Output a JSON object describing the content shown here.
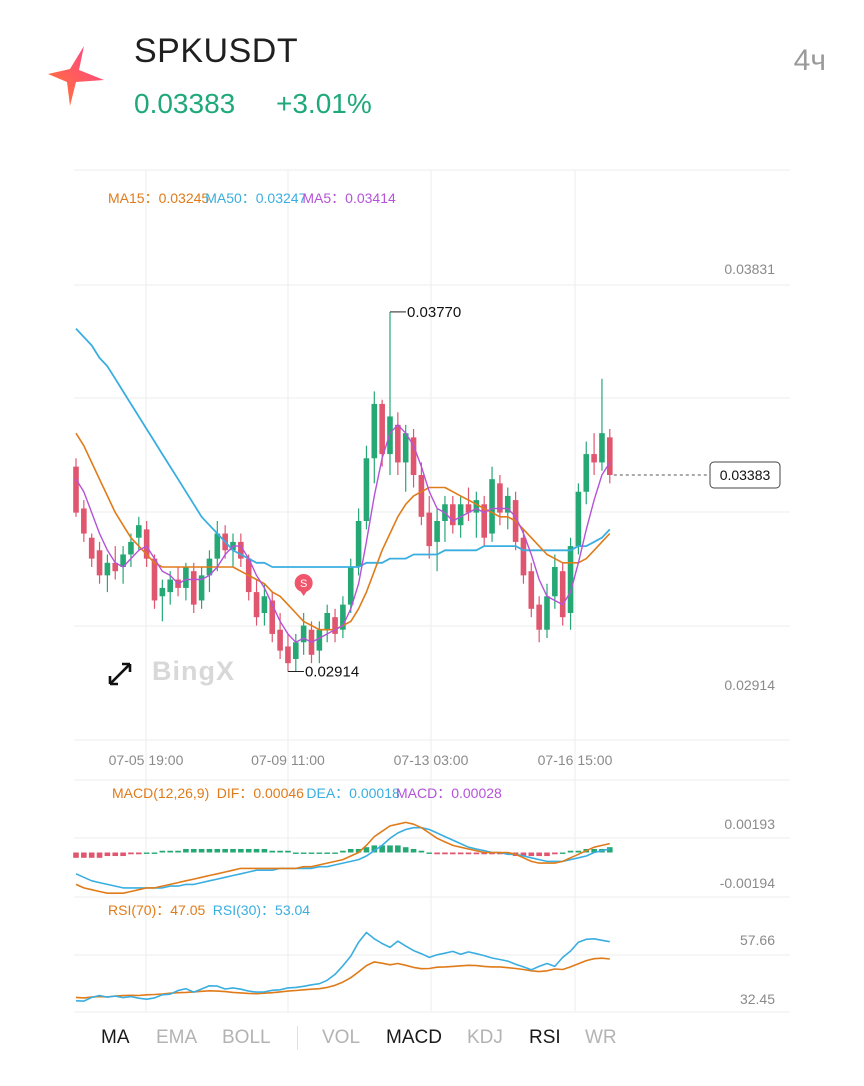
{
  "header": {
    "symbol": "SPKUSDT",
    "price": "0.03383",
    "change": "+3.01%",
    "timeframe": "4ч",
    "logo_icon": "spark-star-icon"
  },
  "colors": {
    "up": "#26a875",
    "down": "#e0566e",
    "ma15": "#e07b1a",
    "ma50": "#3aaee0",
    "ma5": "#b552d8",
    "text_dark": "#1f1f1f",
    "text_grey": "#8a8a8a",
    "grid": "#ededed"
  },
  "chart_data": [
    {
      "type": "candlestick",
      "panel": "main",
      "legend": [
        {
          "label": "MA15：",
          "value": "0.03245",
          "color": "#e07b1a"
        },
        {
          "label": "MA50：",
          "value": "0.03247",
          "color": "#3aaee0"
        },
        {
          "label": "MA5：",
          "value": "0.03414",
          "color": "#b552d8"
        }
      ],
      "y_ticks": [
        "0.03831",
        "0.02914"
      ],
      "ylim": [
        0.0283,
        0.0393
      ],
      "x_ticks": [
        "07-05 19:00",
        "07-09 11:00",
        "07-13 03:00",
        "07-16 15:00"
      ],
      "high_marker": "0.03770",
      "low_marker": "0.02914",
      "last_price_label": "0.03383",
      "signal_badge": "S",
      "watermark": "BingX",
      "candles": [
        [
          0.034,
          0.0342,
          0.0328,
          0.0329
        ],
        [
          0.033,
          0.0332,
          0.0322,
          0.0324
        ],
        [
          0.0323,
          0.0324,
          0.0316,
          0.0318
        ],
        [
          0.032,
          0.0322,
          0.0312,
          0.0314
        ],
        [
          0.0314,
          0.0319,
          0.031,
          0.0317
        ],
        [
          0.0317,
          0.0321,
          0.0313,
          0.0315
        ],
        [
          0.0316,
          0.0321,
          0.0312,
          0.0319
        ],
        [
          0.0319,
          0.0324,
          0.0316,
          0.0322
        ],
        [
          0.0323,
          0.0328,
          0.032,
          0.0326
        ],
        [
          0.0325,
          0.0327,
          0.0316,
          0.0318
        ],
        [
          0.0318,
          0.0319,
          0.0306,
          0.0308
        ],
        [
          0.0309,
          0.0313,
          0.0303,
          0.0311
        ],
        [
          0.031,
          0.0315,
          0.0307,
          0.0313
        ],
        [
          0.0313,
          0.0316,
          0.0309,
          0.0311
        ],
        [
          0.0311,
          0.0317,
          0.0308,
          0.0316
        ],
        [
          0.0315,
          0.0317,
          0.0305,
          0.0307
        ],
        [
          0.0308,
          0.0316,
          0.0306,
          0.0314
        ],
        [
          0.0314,
          0.032,
          0.031,
          0.0318
        ],
        [
          0.0318,
          0.0327,
          0.0315,
          0.0324
        ],
        [
          0.0324,
          0.0326,
          0.0318,
          0.032
        ],
        [
          0.032,
          0.0324,
          0.0316,
          0.0322
        ],
        [
          0.0322,
          0.0324,
          0.0316,
          0.0318
        ],
        [
          0.0318,
          0.0319,
          0.0308,
          0.031
        ],
        [
          0.031,
          0.0313,
          0.0302,
          0.0304
        ],
        [
          0.0305,
          0.0312,
          0.0302,
          0.0309
        ],
        [
          0.0308,
          0.031,
          0.0298,
          0.03
        ],
        [
          0.0301,
          0.0305,
          0.0294,
          0.0296
        ],
        [
          0.0297,
          0.03,
          0.0291,
          0.0293
        ],
        [
          0.0294,
          0.03,
          0.0291,
          0.0298
        ],
        [
          0.0298,
          0.0305,
          0.0295,
          0.0302
        ],
        [
          0.0301,
          0.0303,
          0.0293,
          0.0295
        ],
        [
          0.0296,
          0.0303,
          0.0293,
          0.0301
        ],
        [
          0.0301,
          0.0307,
          0.0298,
          0.0305
        ],
        [
          0.0304,
          0.0306,
          0.0298,
          0.03
        ],
        [
          0.0301,
          0.0309,
          0.0299,
          0.0307
        ],
        [
          0.0307,
          0.0318,
          0.0305,
          0.0316
        ],
        [
          0.0316,
          0.033,
          0.0314,
          0.0327
        ],
        [
          0.0327,
          0.0345,
          0.0325,
          0.0342
        ],
        [
          0.0342,
          0.0358,
          0.0336,
          0.0355
        ],
        [
          0.0355,
          0.0356,
          0.034,
          0.0343
        ],
        [
          0.0343,
          0.0377,
          0.0338,
          0.0352
        ],
        [
          0.035,
          0.0353,
          0.0338,
          0.0341
        ],
        [
          0.0341,
          0.035,
          0.0334,
          0.0348
        ],
        [
          0.0347,
          0.0349,
          0.0335,
          0.0338
        ],
        [
          0.0338,
          0.0341,
          0.0326,
          0.0328
        ],
        [
          0.0329,
          0.0333,
          0.0318,
          0.0321
        ],
        [
          0.0322,
          0.033,
          0.0315,
          0.0327
        ],
        [
          0.0327,
          0.0333,
          0.0322,
          0.0331
        ],
        [
          0.0331,
          0.0333,
          0.0324,
          0.0326
        ],
        [
          0.0326,
          0.0333,
          0.0323,
          0.0331
        ],
        [
          0.0331,
          0.0335,
          0.0327,
          0.0329
        ],
        [
          0.0329,
          0.0334,
          0.0323,
          0.0332
        ],
        [
          0.0331,
          0.0333,
          0.0321,
          0.0323
        ],
        [
          0.0324,
          0.034,
          0.0322,
          0.0337
        ],
        [
          0.0336,
          0.0338,
          0.0326,
          0.0329
        ],
        [
          0.0329,
          0.0335,
          0.0325,
          0.0333
        ],
        [
          0.0332,
          0.0334,
          0.032,
          0.0322
        ],
        [
          0.0323,
          0.0325,
          0.0312,
          0.0314
        ],
        [
          0.0315,
          0.0317,
          0.0304,
          0.0306
        ],
        [
          0.0307,
          0.0309,
          0.0298,
          0.0301
        ],
        [
          0.0301,
          0.0312,
          0.0299,
          0.0309
        ],
        [
          0.0309,
          0.0319,
          0.0306,
          0.0316
        ],
        [
          0.0315,
          0.0317,
          0.0302,
          0.0304
        ],
        [
          0.0305,
          0.0323,
          0.0301,
          0.0321
        ],
        [
          0.0321,
          0.0336,
          0.0319,
          0.0334
        ],
        [
          0.0334,
          0.0346,
          0.0331,
          0.0343
        ],
        [
          0.0343,
          0.0348,
          0.0338,
          0.0341
        ],
        [
          0.0341,
          0.0361,
          0.0339,
          0.0348
        ],
        [
          0.0347,
          0.0349,
          0.0336,
          0.0338
        ]
      ],
      "ma5": [
        0.0337,
        0.0334,
        0.0329,
        0.0324,
        0.032,
        0.0317,
        0.0316,
        0.0318,
        0.032,
        0.0321,
        0.0318,
        0.0315,
        0.0314,
        0.0312,
        0.0313,
        0.0313,
        0.0313,
        0.0314,
        0.0316,
        0.0319,
        0.0321,
        0.0321,
        0.0318,
        0.0314,
        0.0311,
        0.0307,
        0.0303,
        0.03,
        0.0298,
        0.0299,
        0.0298,
        0.0299,
        0.03,
        0.0301,
        0.0302,
        0.0306,
        0.0312,
        0.0322,
        0.0333,
        0.0342,
        0.0348,
        0.035,
        0.0348,
        0.0345,
        0.034,
        0.0334,
        0.033,
        0.0329,
        0.0327,
        0.0328,
        0.0329,
        0.033,
        0.0329,
        0.033,
        0.033,
        0.033,
        0.0328,
        0.0324,
        0.0319,
        0.0313,
        0.0309,
        0.0308,
        0.0307,
        0.031,
        0.0317,
        0.0325,
        0.0332,
        0.0338,
        0.0341
      ],
      "ma15": [
        0.0348,
        0.0345,
        0.0341,
        0.0337,
        0.0333,
        0.0329,
        0.0326,
        0.0323,
        0.0321,
        0.0319,
        0.0317,
        0.0316,
        0.0316,
        0.0316,
        0.0316,
        0.0316,
        0.0316,
        0.0316,
        0.0316,
        0.0316,
        0.0316,
        0.0315,
        0.0314,
        0.0313,
        0.0312,
        0.031,
        0.0309,
        0.0307,
        0.0305,
        0.0303,
        0.0302,
        0.0301,
        0.0301,
        0.0301,
        0.0302,
        0.0303,
        0.0306,
        0.031,
        0.0315,
        0.032,
        0.0324,
        0.0328,
        0.0331,
        0.0333,
        0.0334,
        0.0335,
        0.0335,
        0.0335,
        0.0334,
        0.0333,
        0.0332,
        0.0331,
        0.033,
        0.0329,
        0.0328,
        0.0328,
        0.0327,
        0.0325,
        0.0323,
        0.0321,
        0.0319,
        0.0318,
        0.0317,
        0.0317,
        0.0317,
        0.0318,
        0.032,
        0.0322,
        0.0324
      ],
      "ma50": [
        0.0373,
        0.0371,
        0.0369,
        0.0366,
        0.0364,
        0.0361,
        0.0358,
        0.0355,
        0.0352,
        0.0349,
        0.0346,
        0.0343,
        0.034,
        0.0337,
        0.0334,
        0.0331,
        0.0328,
        0.0326,
        0.0324,
        0.0322,
        0.032,
        0.0319,
        0.0318,
        0.0317,
        0.0317,
        0.0316,
        0.0316,
        0.0316,
        0.0316,
        0.0316,
        0.0316,
        0.0316,
        0.0316,
        0.0316,
        0.0316,
        0.0316,
        0.0316,
        0.0317,
        0.0317,
        0.0317,
        0.0318,
        0.0318,
        0.0318,
        0.0319,
        0.0319,
        0.0319,
        0.0319,
        0.032,
        0.032,
        0.032,
        0.032,
        0.032,
        0.0321,
        0.0321,
        0.0321,
        0.0321,
        0.0321,
        0.032,
        0.032,
        0.032,
        0.032,
        0.032,
        0.032,
        0.032,
        0.0321,
        0.0321,
        0.0322,
        0.0323,
        0.0325
      ]
    },
    {
      "type": "macd",
      "panel": "macd",
      "legend": [
        {
          "label": "MACD(12,26,9)",
          "value": "",
          "color": "#e07b1a"
        },
        {
          "label": "DIF：",
          "value": "0.00046",
          "color": "#e07b1a"
        },
        {
          "label": "DEA：",
          "value": "0.00018",
          "color": "#3aaee0"
        },
        {
          "label": "MACD：",
          "value": "0.00028",
          "color": "#b552d8"
        }
      ],
      "y_ticks": [
        "0.00193",
        "-0.00194"
      ],
      "ylim": [
        -0.0024,
        0.0024
      ],
      "dif": [
        -0.0018,
        -0.002,
        -0.0021,
        -0.0022,
        -0.0023,
        -0.0023,
        -0.0023,
        -0.0022,
        -0.0021,
        -0.002,
        -0.002,
        -0.0019,
        -0.0018,
        -0.0017,
        -0.0016,
        -0.0015,
        -0.0014,
        -0.0013,
        -0.0012,
        -0.0011,
        -0.001,
        -0.0009,
        -0.0009,
        -0.0009,
        -0.0009,
        -0.0009,
        -0.0009,
        -0.0009,
        -0.0009,
        -0.0008,
        -0.0008,
        -0.0007,
        -0.0006,
        -0.0005,
        -0.0004,
        -0.0002,
        0.0,
        0.0004,
        0.0009,
        0.0012,
        0.0015,
        0.0016,
        0.0017,
        0.0016,
        0.0014,
        0.0011,
        0.0008,
        0.0006,
        0.0004,
        0.0003,
        0.0002,
        0.0001,
        0.0,
        0.0,
        0.0,
        0.0,
        -0.0001,
        -0.0003,
        -0.0005,
        -0.0006,
        -0.0006,
        -0.0006,
        -0.0005,
        -0.0003,
        -0.0001,
        0.0001,
        0.0003,
        0.0004,
        0.0005
      ],
      "dea": [
        -0.0012,
        -0.0014,
        -0.0016,
        -0.0017,
        -0.0018,
        -0.0019,
        -0.002,
        -0.002,
        -0.002,
        -0.002,
        -0.002,
        -0.002,
        -0.0019,
        -0.0019,
        -0.0018,
        -0.0018,
        -0.0017,
        -0.0016,
        -0.0015,
        -0.0014,
        -0.0013,
        -0.0012,
        -0.0011,
        -0.001,
        -0.001,
        -0.001,
        -0.0009,
        -0.0009,
        -0.0009,
        -0.0009,
        -0.0009,
        -0.0008,
        -0.0008,
        -0.0007,
        -0.0006,
        -0.0005,
        -0.0004,
        -0.0002,
        0.0001,
        0.0004,
        0.0008,
        0.0011,
        0.0013,
        0.0014,
        0.0014,
        0.0013,
        0.0011,
        0.0009,
        0.0007,
        0.0005,
        0.0003,
        0.0002,
        0.0001,
        0.0,
        0.0,
        -0.0001,
        -0.0001,
        -0.0002,
        -0.0003,
        -0.0004,
        -0.0005,
        -0.0005,
        -0.0005,
        -0.0004,
        -0.0003,
        -0.0002,
        0.0,
        0.0001,
        0.0002
      ],
      "hist": [
        -0.0003,
        -0.0003,
        -0.0003,
        -0.0003,
        -0.0002,
        -0.0002,
        -0.0002,
        -0.0001,
        -0.0001,
        0.0,
        0.0,
        0.0001,
        0.0001,
        0.0001,
        0.0002,
        0.0002,
        0.0002,
        0.0002,
        0.0002,
        0.0002,
        0.0002,
        0.0002,
        0.0002,
        0.0002,
        0.0002,
        0.0001,
        0.0001,
        0.0001,
        0.0,
        0.0,
        0.0,
        0.0,
        0.0,
        0.0,
        0.0001,
        0.0002,
        0.0002,
        0.0003,
        0.0004,
        0.0004,
        0.0004,
        0.0004,
        0.0003,
        0.0002,
        0.0001,
        0.0,
        -0.0001,
        -0.0001,
        -0.0001,
        -0.0001,
        -0.0001,
        -0.0001,
        -0.0001,
        -0.0001,
        -0.0001,
        -0.0001,
        -0.0002,
        -0.0002,
        -0.0002,
        -0.0002,
        -0.0002,
        -0.0001,
        0.0,
        0.0001,
        0.0001,
        0.0002,
        0.0002,
        0.0002,
        0.0003
      ]
    },
    {
      "type": "line",
      "panel": "rsi",
      "legend": [
        {
          "label": "RSI(70)：",
          "value": "47.05",
          "color": "#e07b1a"
        },
        {
          "label": "RSI(30)：",
          "value": "53.04",
          "color": "#3aaee0"
        }
      ],
      "y_ticks": [
        "57.66",
        "32.45"
      ],
      "ylim": [
        29,
        64
      ],
      "rsi70": [
        33.8,
        33.6,
        33.9,
        34.1,
        34.0,
        34.3,
        34.5,
        34.6,
        34.5,
        34.8,
        34.9,
        35.1,
        35.4,
        35.6,
        35.7,
        35.9,
        36.1,
        36.3,
        36.2,
        36.0,
        35.7,
        35.5,
        35.3,
        35.2,
        35.4,
        35.6,
        35.9,
        36.2,
        36.4,
        36.7,
        36.9,
        37.1,
        37.6,
        38.4,
        39.6,
        41.3,
        43.5,
        45.9,
        47.3,
        46.8,
        46.2,
        46.7,
        46.0,
        45.2,
        44.7,
        44.8,
        45.3,
        45.4,
        45.6,
        45.8,
        46.0,
        45.9,
        45.6,
        45.4,
        45.4,
        45.1,
        44.8,
        44.4,
        43.9,
        43.6,
        43.9,
        44.6,
        44.4,
        45.4,
        46.6,
        47.8,
        48.5,
        48.7,
        48.4
      ],
      "rsi30": [
        32.5,
        32.4,
        33.8,
        34.5,
        33.9,
        34.3,
        33.7,
        34.1,
        33.5,
        33.1,
        33.6,
        34.8,
        35.0,
        36.4,
        37.1,
        35.8,
        37.0,
        38.2,
        38.1,
        37.0,
        37.4,
        36.9,
        36.2,
        35.8,
        35.9,
        36.5,
        36.7,
        37.4,
        37.6,
        38.0,
        38.6,
        39.0,
        40.3,
        42.6,
        45.8,
        49.5,
        54.8,
        58.5,
        56.1,
        54.3,
        52.8,
        55.2,
        53.3,
        51.6,
        50.4,
        49.0,
        50.0,
        50.6,
        51.3,
        50.2,
        51.1,
        50.4,
        49.7,
        48.8,
        48.2,
        47.6,
        46.4,
        45.4,
        44.3,
        45.6,
        46.7,
        45.6,
        49.0,
        51.4,
        54.8,
        55.9,
        56.1,
        55.5,
        55.0
      ]
    }
  ],
  "indicator_tabs": {
    "ma": "MA",
    "ema": "EMA",
    "boll": "BOLL",
    "vol": "VOL",
    "macd": "MACD",
    "kdj": "KDJ",
    "rsi": "RSI",
    "wr": "WR"
  }
}
